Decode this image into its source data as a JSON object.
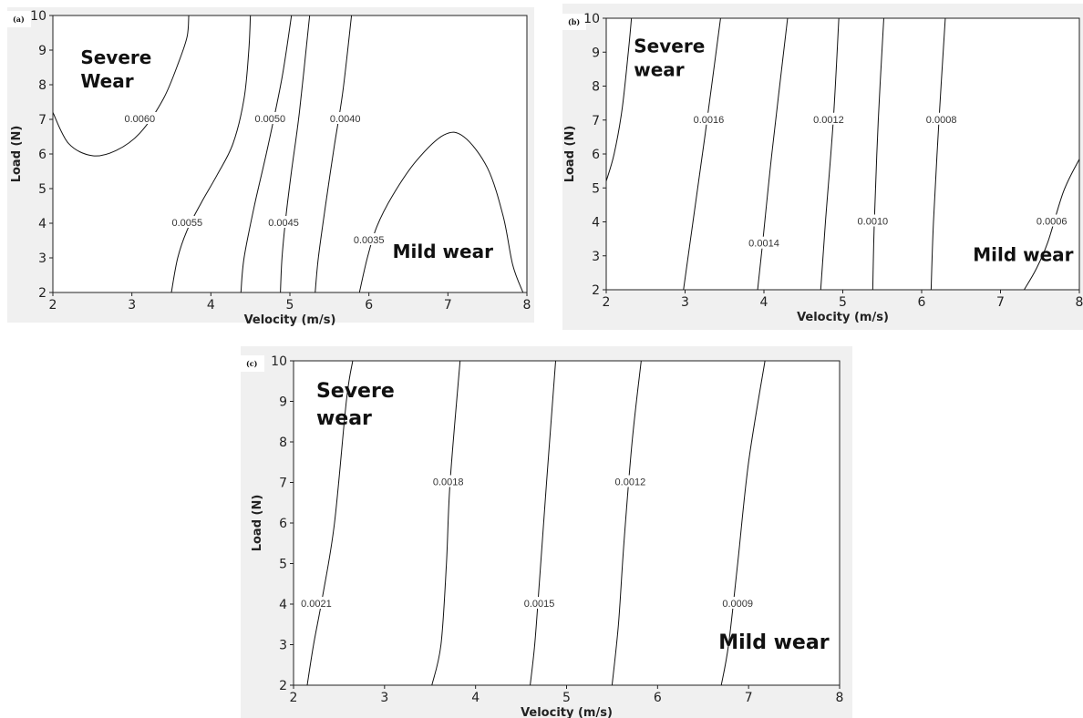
{
  "chart_data": [
    {
      "type": "contour",
      "panel": "(a)",
      "xlabel": "Velocity (m/s)",
      "ylabel": "Load (N)",
      "xlim": [
        2,
        8
      ],
      "ylim": [
        2,
        10
      ],
      "xticks": [
        2,
        3,
        4,
        5,
        6,
        7,
        8
      ],
      "yticks": [
        2,
        3,
        4,
        5,
        6,
        7,
        8,
        9,
        10
      ],
      "regions": [
        {
          "text": "Severe\nWear",
          "x": 2.35,
          "y": 8.6
        },
        {
          "text": "Mild wear",
          "x": 6.3,
          "y": 3.0
        }
      ],
      "contours": [
        {
          "value": "0.0060",
          "points": [
            [
              2.0,
              7.2
            ],
            [
              2.2,
              6.3
            ],
            [
              2.5,
              5.95
            ],
            [
              2.8,
              6.1
            ],
            [
              3.1,
              6.6
            ],
            [
              3.4,
              7.6
            ],
            [
              3.6,
              8.7
            ],
            [
              3.7,
              9.4
            ],
            [
              3.72,
              10.0
            ]
          ],
          "label_at": [
            3.1,
            7.0
          ]
        },
        {
          "value": "0.0055",
          "points": [
            [
              3.5,
              2.0
            ],
            [
              3.58,
              3.0
            ],
            [
              3.7,
              3.8
            ],
            [
              3.88,
              4.6
            ],
            [
              4.08,
              5.4
            ],
            [
              4.28,
              6.3
            ],
            [
              4.42,
              7.6
            ],
            [
              4.48,
              9.0
            ],
            [
              4.5,
              10.0
            ]
          ],
          "label_at": [
            3.7,
            4.0
          ]
        },
        {
          "value": "0.0050",
          "points": [
            [
              4.38,
              2.0
            ],
            [
              4.42,
              3.0
            ],
            [
              4.55,
              4.5
            ],
            [
              4.72,
              6.2
            ],
            [
              4.9,
              8.2
            ],
            [
              5.02,
              10.0
            ]
          ],
          "label_at": [
            4.75,
            7.0
          ]
        },
        {
          "value": "0.0045",
          "points": [
            [
              4.88,
              2.0
            ],
            [
              4.9,
              3.0
            ],
            [
              4.95,
              4.2
            ],
            [
              5.02,
              5.5
            ],
            [
              5.12,
              7.2
            ],
            [
              5.25,
              10.0
            ]
          ],
          "label_at": [
            4.92,
            4.0
          ]
        },
        {
          "value": "0.0040",
          "points": [
            [
              5.32,
              2.0
            ],
            [
              5.36,
              3.0
            ],
            [
              5.45,
              4.5
            ],
            [
              5.56,
              6.2
            ],
            [
              5.67,
              7.8
            ],
            [
              5.78,
              10.0
            ]
          ],
          "label_at": [
            5.7,
            7.0
          ]
        },
        {
          "value": "0.0035",
          "points": [
            [
              5.88,
              2.0
            ],
            [
              5.98,
              3.0
            ],
            [
              6.1,
              3.9
            ],
            [
              6.3,
              4.8
            ],
            [
              6.6,
              5.8
            ],
            [
              6.95,
              6.55
            ],
            [
              7.2,
              6.5
            ],
            [
              7.5,
              5.6
            ],
            [
              7.7,
              4.2
            ],
            [
              7.82,
              2.8
            ],
            [
              7.95,
              2.0
            ]
          ],
          "label_at": [
            6.0,
            3.5
          ]
        }
      ]
    },
    {
      "type": "contour",
      "panel": "(b)",
      "xlabel": "Velocity (m/s)",
      "ylabel": "Load (N)",
      "xlim": [
        2,
        8
      ],
      "ylim": [
        2,
        10
      ],
      "xticks": [
        2,
        3,
        4,
        5,
        6,
        7,
        8
      ],
      "yticks": [
        2,
        3,
        4,
        5,
        6,
        7,
        8,
        9,
        10
      ],
      "regions": [
        {
          "text": "Severe\nwear",
          "x": 2.35,
          "y": 9.0
        },
        {
          "text": "Mild wear",
          "x": 6.65,
          "y": 2.85
        }
      ],
      "contours": [
        {
          "value": "",
          "points": [
            [
              2.0,
              5.2
            ],
            [
              2.1,
              6.0
            ],
            [
              2.2,
              7.3
            ],
            [
              2.28,
              9.0
            ],
            [
              2.32,
              10.0
            ]
          ],
          "label_at": null
        },
        {
          "value": "0.0016",
          "points": [
            [
              2.98,
              2.0
            ],
            [
              3.1,
              4.0
            ],
            [
              3.25,
              6.5
            ],
            [
              3.45,
              10.0
            ]
          ],
          "label_at": [
            3.3,
            7.0
          ]
        },
        {
          "value": "0.0014",
          "points": [
            [
              3.92,
              2.0
            ],
            [
              3.98,
              3.3
            ],
            [
              4.1,
              6.0
            ],
            [
              4.3,
              10.0
            ]
          ],
          "label_at": [
            4.0,
            3.35
          ]
        },
        {
          "value": "0.0012",
          "points": [
            [
              4.72,
              2.0
            ],
            [
              4.78,
              4.0
            ],
            [
              4.88,
              7.0
            ],
            [
              4.95,
              10.0
            ]
          ],
          "label_at": [
            4.82,
            7.0
          ]
        },
        {
          "value": "0.0010",
          "points": [
            [
              5.38,
              2.0
            ],
            [
              5.4,
              4.0
            ],
            [
              5.45,
              7.0
            ],
            [
              5.52,
              10.0
            ]
          ],
          "label_at": [
            5.38,
            4.0
          ]
        },
        {
          "value": "0.0008",
          "points": [
            [
              6.12,
              2.0
            ],
            [
              6.15,
              4.0
            ],
            [
              6.22,
              7.0
            ],
            [
              6.3,
              10.0
            ]
          ],
          "label_at": [
            6.25,
            7.0
          ]
        },
        {
          "value": "0.0006",
          "points": [
            [
              7.3,
              2.0
            ],
            [
              7.45,
              2.6
            ],
            [
              7.6,
              3.4
            ],
            [
              7.8,
              4.9
            ],
            [
              8.0,
              5.85
            ]
          ],
          "label_at": [
            7.65,
            4.0
          ]
        }
      ]
    },
    {
      "type": "contour",
      "panel": "(c)",
      "xlabel": "Velocity (m/s)",
      "ylabel": "Load (N)",
      "xlim": [
        2,
        8
      ],
      "ylim": [
        2,
        10
      ],
      "xticks": [
        2,
        3,
        4,
        5,
        6,
        7,
        8
      ],
      "yticks": [
        2,
        3,
        4,
        5,
        6,
        7,
        8,
        9,
        10
      ],
      "regions": [
        {
          "text": "Severe\nwear",
          "x": 2.25,
          "y": 9.1
        },
        {
          "text": "Mild wear",
          "x": 6.67,
          "y": 2.9
        }
      ],
      "contours": [
        {
          "value": "0.0021",
          "points": [
            [
              2.15,
              2.0
            ],
            [
              2.22,
              3.0
            ],
            [
              2.32,
              4.2
            ],
            [
              2.45,
              6.0
            ],
            [
              2.58,
              9.0
            ],
            [
              2.65,
              10.0
            ]
          ],
          "label_at": [
            2.25,
            4.0
          ]
        },
        {
          "value": "0.0018",
          "points": [
            [
              3.52,
              2.0
            ],
            [
              3.62,
              3.0
            ],
            [
              3.68,
              5.0
            ],
            [
              3.72,
              7.0
            ],
            [
              3.83,
              10.0
            ]
          ],
          "label_at": [
            3.7,
            7.0
          ]
        },
        {
          "value": "0.0015",
          "points": [
            [
              4.6,
              2.0
            ],
            [
              4.65,
              3.0
            ],
            [
              4.7,
              4.5
            ],
            [
              4.78,
              7.0
            ],
            [
              4.88,
              10.0
            ]
          ],
          "label_at": [
            4.7,
            4.0
          ]
        },
        {
          "value": "0.0012",
          "points": [
            [
              5.5,
              2.0
            ],
            [
              5.57,
              3.5
            ],
            [
              5.63,
              5.5
            ],
            [
              5.72,
              8.0
            ],
            [
              5.82,
              10.0
            ]
          ],
          "label_at": [
            5.7,
            7.0
          ]
        },
        {
          "value": "0.0009",
          "points": [
            [
              6.7,
              2.0
            ],
            [
              6.78,
              3.0
            ],
            [
              6.88,
              5.0
            ],
            [
              7.0,
              7.5
            ],
            [
              7.18,
              10.0
            ]
          ],
          "label_at": [
            6.88,
            4.0
          ]
        }
      ]
    }
  ]
}
